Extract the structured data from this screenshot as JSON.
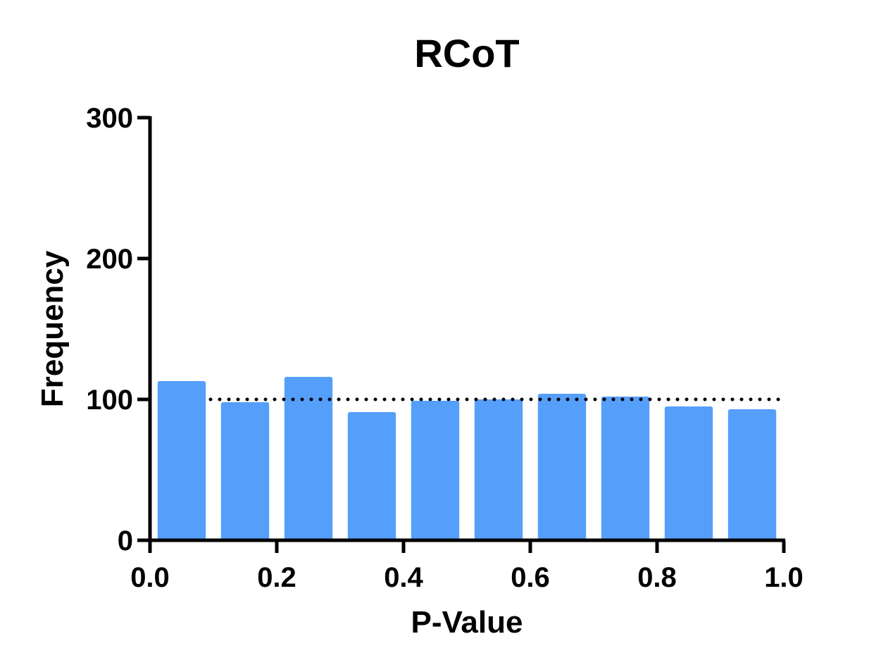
{
  "chart_data": {
    "type": "bar",
    "title": "RCoT",
    "xlabel": "P-Value",
    "ylabel": "Frequency",
    "xlim": [
      0.0,
      1.0
    ],
    "ylim": [
      0,
      300
    ],
    "bin_width": 0.1,
    "categories": [
      "0.0-0.1",
      "0.1-0.2",
      "0.2-0.3",
      "0.3-0.4",
      "0.4-0.5",
      "0.5-0.6",
      "0.6-0.7",
      "0.7-0.8",
      "0.8-0.9",
      "0.9-1.0"
    ],
    "bin_centers": [
      0.05,
      0.15,
      0.25,
      0.35,
      0.45,
      0.55,
      0.65,
      0.75,
      0.85,
      0.95
    ],
    "values": [
      113,
      98,
      116,
      91,
      99,
      100,
      104,
      102,
      95,
      93
    ],
    "reference_line": {
      "y": 100,
      "style": "dotted"
    },
    "xticks": [
      "0.0",
      "0.2",
      "0.4",
      "0.6",
      "0.8",
      "1.0"
    ],
    "xtick_values": [
      0.0,
      0.2,
      0.4,
      0.6,
      0.8,
      1.0
    ],
    "yticks": [
      "0",
      "100",
      "200",
      "300"
    ],
    "ytick_values": [
      0,
      100,
      200,
      300
    ],
    "bar_color": "#559ffa",
    "axis_color": "#000000",
    "grid": false
  }
}
